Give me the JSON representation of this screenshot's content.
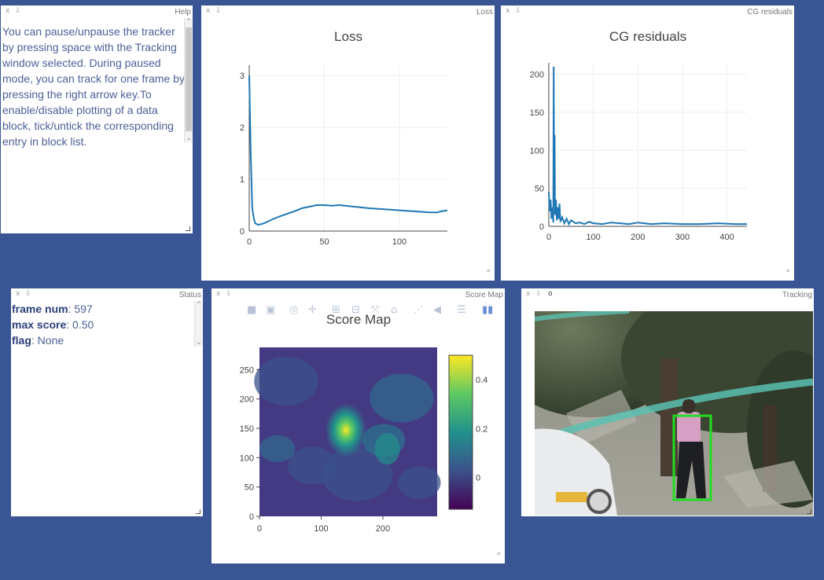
{
  "help": {
    "title": "Help",
    "close": "x",
    "pin": "⇩",
    "text": "You can pause/unpause the tracker by pressing space with the Tracking window selected. During paused mode, you can track for one frame by pressing the right arrow key.To enable/disable plotting of a data block, tick/untick the corresponding entry in block list."
  },
  "loss": {
    "title": "Loss",
    "close": "x",
    "pin": "⇩",
    "expand": "»",
    "chart_data": {
      "type": "line",
      "title": "Loss",
      "x_ticks": [
        0,
        50,
        100
      ],
      "y_ticks": [
        0,
        1,
        2,
        3
      ],
      "xlim": [
        0,
        132
      ],
      "ylim": [
        0,
        3.2
      ],
      "series": [
        {
          "color": "#1f77b4",
          "x": [
            0,
            1,
            2,
            3,
            4,
            6,
            10,
            15,
            20,
            25,
            30,
            35,
            40,
            45,
            50,
            55,
            60,
            70,
            80,
            90,
            100,
            110,
            120,
            125,
            128,
            132
          ],
          "y": [
            3.0,
            1.5,
            0.45,
            0.25,
            0.15,
            0.12,
            0.15,
            0.22,
            0.28,
            0.33,
            0.38,
            0.44,
            0.47,
            0.5,
            0.5,
            0.49,
            0.5,
            0.47,
            0.44,
            0.42,
            0.4,
            0.38,
            0.36,
            0.36,
            0.38,
            0.4
          ]
        }
      ]
    }
  },
  "cg": {
    "title": "CG residuals",
    "close": "x",
    "pin": "⇩",
    "expand": "»",
    "chart_data": {
      "type": "line",
      "title": "CG residuals",
      "x_ticks": [
        0,
        100,
        200,
        300,
        400
      ],
      "y_ticks": [
        0,
        50,
        100,
        150,
        200
      ],
      "xlim": [
        0,
        445
      ],
      "ylim": [
        0,
        215
      ],
      "series": [
        {
          "color": "#1f77b4",
          "x": [
            0,
            2,
            4,
            6,
            8,
            10,
            11,
            12,
            13,
            14,
            16,
            18,
            20,
            22,
            24,
            26,
            30,
            35,
            40,
            45,
            50,
            60,
            70,
            80,
            90,
            100,
            120,
            140,
            160,
            180,
            200,
            230,
            260,
            300,
            340,
            380,
            420,
            445
          ],
          "y": [
            45,
            20,
            35,
            10,
            25,
            5,
            210,
            40,
            120,
            15,
            35,
            8,
            25,
            10,
            30,
            6,
            12,
            4,
            10,
            3,
            8,
            4,
            5,
            3,
            6,
            4,
            3,
            5,
            4,
            3,
            5,
            3,
            4,
            3,
            3,
            4,
            3,
            3
          ]
        }
      ]
    }
  },
  "status": {
    "title": "Status",
    "close": "x",
    "pin": "⇩",
    "rows": [
      {
        "label": "frame num",
        "value": ": 597"
      },
      {
        "label": "max score",
        "value": ": 0.50"
      },
      {
        "label": "flag",
        "value": ": None"
      }
    ]
  },
  "score": {
    "title": "Score Map",
    "close": "x",
    "pin": "⇩",
    "expand": "»",
    "toolbar_icons": [
      "camera-icon",
      "save-icon",
      "zoom-icon",
      "pan-icon",
      "zoom-in-icon",
      "zoom-out-icon",
      "autoscale-icon",
      "home-icon",
      "spike-lines-icon",
      "hover-closest-icon",
      "hover-compare-icon",
      "plotly-logo-icon"
    ],
    "chart_data": {
      "type": "heatmap",
      "title": "Score Map",
      "x_ticks": [
        0,
        100,
        200
      ],
      "y_ticks": [
        0,
        50,
        100,
        150,
        200,
        250
      ],
      "xlim": [
        0,
        288
      ],
      "ylim": [
        0,
        288
      ],
      "colorbar_ticks": [
        0,
        0.2,
        0.4
      ],
      "zlim": [
        -0.13,
        0.5
      ],
      "colors": [
        "#440154",
        "#3b528b",
        "#21918c",
        "#5ec962",
        "#fde725"
      ],
      "peak": {
        "x": 140,
        "y": 147,
        "value": 0.5
      }
    }
  },
  "tracking": {
    "title": "Tracking",
    "close": "x",
    "pin": "⇩",
    "extra": "o",
    "bbox_color": "#22dd22"
  }
}
